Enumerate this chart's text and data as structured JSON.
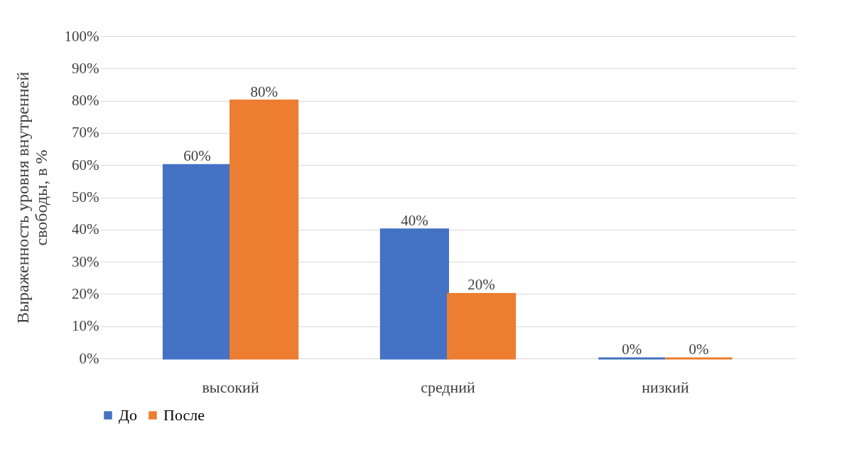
{
  "chart_data": {
    "type": "bar",
    "ylabel": "Выраженность уровня внутренней свободы, в %",
    "categories": [
      "высокий",
      "средний",
      "низкий"
    ],
    "series": [
      {
        "name": "До",
        "color": "#4472c4",
        "values": [
          60,
          40,
          0
        ],
        "value_labels": [
          "60%",
          "40%",
          "0%"
        ]
      },
      {
        "name": "После",
        "color": "#ed7d31",
        "values": [
          80,
          20,
          0
        ],
        "value_labels": [
          "80%",
          "20%",
          "0%"
        ]
      }
    ],
    "ylim": [
      0,
      100
    ],
    "yticks": [
      {
        "value": 0,
        "label": "0%"
      },
      {
        "value": 10,
        "label": "10%"
      },
      {
        "value": 20,
        "label": "20%"
      },
      {
        "value": 30,
        "label": "30%"
      },
      {
        "value": 40,
        "label": "40%"
      },
      {
        "value": 50,
        "label": "50%"
      },
      {
        "value": 60,
        "label": "60%"
      },
      {
        "value": 70,
        "label": "70%"
      },
      {
        "value": 80,
        "label": "80%"
      },
      {
        "value": 90,
        "label": "90%"
      },
      {
        "value": 100,
        "label": "100%"
      }
    ],
    "grid": "y",
    "legend": "bottom"
  }
}
